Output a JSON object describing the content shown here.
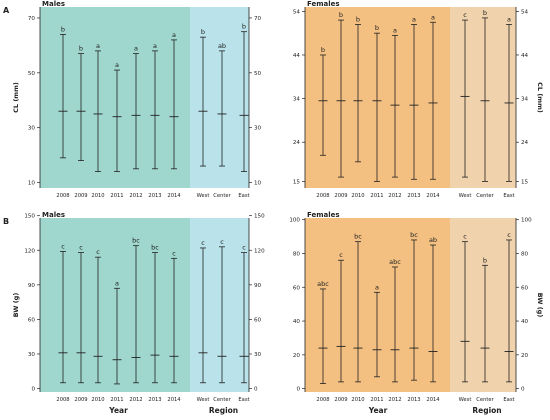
{
  "figure": {
    "panel_labels": [
      "A",
      "B"
    ],
    "x_axis_titles": {
      "year": "Year",
      "region": "Region"
    }
  },
  "colors": {
    "males_year": "#9fd7cf",
    "males_region": "#b9e2ea",
    "females_year": "#f4c082",
    "females_region": "#f0d3ac",
    "line": "#222222"
  },
  "chart_data": [
    {
      "id": "cl-males",
      "type": "error-bar",
      "title": "Males",
      "ylabel": "CL (mm)",
      "ylabel_side": "left",
      "ylim": [
        8,
        74
      ],
      "yticks": [
        10,
        30,
        50,
        70
      ],
      "categories": [
        "2008",
        "2009",
        "2010",
        "2011",
        "2012",
        "2013",
        "2014",
        "West",
        "Center",
        "East"
      ],
      "groups": {
        "year": [
          0,
          6
        ],
        "region": [
          7,
          9
        ]
      },
      "series": [
        {
          "center": [
            36,
            36,
            35,
            34,
            34.5,
            34.5,
            34,
            36,
            35,
            34.5
          ],
          "low": [
            19,
            18,
            14,
            14,
            15,
            15,
            15,
            16,
            16,
            14
          ],
          "high": [
            64,
            57,
            58,
            51,
            57,
            58,
            62,
            63,
            58,
            65
          ]
        }
      ],
      "letters": [
        "b",
        "b",
        "a",
        "a",
        "a",
        "a",
        "a",
        "b",
        "ab",
        "b"
      ]
    },
    {
      "id": "cl-females",
      "type": "error-bar",
      "title": "Females",
      "ylabel": "CL (mm)",
      "ylabel_side": "right",
      "ylim": [
        13.5,
        55
      ],
      "yticks": [
        15,
        24,
        34,
        44,
        54
      ],
      "categories": [
        "2008",
        "2009",
        "2010",
        "2011",
        "2012",
        "2013",
        "2014",
        "West",
        "Center",
        "East"
      ],
      "groups": {
        "year": [
          0,
          6
        ],
        "region": [
          7,
          9
        ]
      },
      "series": [
        {
          "center": [
            33.5,
            33.5,
            33.5,
            33.5,
            32.5,
            32.5,
            33,
            34.5,
            33.5,
            33
          ],
          "low": [
            21,
            16,
            19.5,
            15,
            16,
            15.5,
            15.5,
            16,
            15,
            15
          ],
          "high": [
            44,
            52,
            51,
            49,
            48.5,
            51,
            51.5,
            52,
            52.5,
            51
          ]
        }
      ],
      "letters": [
        "b",
        "b",
        "b",
        "b",
        "a",
        "a",
        "a",
        "c",
        "b",
        "a"
      ]
    },
    {
      "id": "bw-males",
      "type": "error-bar",
      "title": "Males",
      "ylabel": "BW (g)",
      "ylabel_side": "left",
      "ylim": [
        -3,
        148
      ],
      "yticks": [
        0,
        30,
        60,
        90,
        120,
        150
      ],
      "categories": [
        "2008",
        "2009",
        "2010",
        "2011",
        "2012",
        "2013",
        "2014",
        "West",
        "Center",
        "East"
      ],
      "groups": {
        "year": [
          0,
          6
        ],
        "region": [
          7,
          9
        ]
      },
      "series": [
        {
          "center": [
            31,
            31,
            28,
            25,
            27,
            29,
            28,
            31,
            28,
            28
          ],
          "low": [
            5,
            5,
            5,
            4,
            5,
            5,
            5,
            5,
            5,
            5
          ],
          "high": [
            119,
            118,
            114,
            87,
            124,
            118,
            113,
            122,
            123,
            118
          ]
        }
      ],
      "letters": [
        "c",
        "c",
        "c",
        "a",
        "bc",
        "bc",
        "c",
        "c",
        "c",
        "c"
      ]
    },
    {
      "id": "bw-females",
      "type": "error-bar",
      "title": "Females",
      "ylabel": "BW (g)",
      "ylabel_side": "right",
      "ylim": [
        -2,
        101
      ],
      "yticks": [
        0,
        20,
        40,
        60,
        80,
        100
      ],
      "categories": [
        "2008",
        "2009",
        "2010",
        "2011",
        "2012",
        "2013",
        "2014",
        "West",
        "Center",
        "East"
      ],
      "groups": {
        "year": [
          0,
          6
        ],
        "region": [
          7,
          9
        ]
      },
      "series": [
        {
          "center": [
            24,
            25,
            24,
            23,
            23,
            24,
            22,
            28,
            24,
            22
          ],
          "low": [
            3,
            4,
            4,
            7,
            4,
            5,
            4,
            4,
            4,
            4
          ],
          "high": [
            59,
            76,
            87,
            57,
            72,
            88,
            85,
            87,
            73,
            88
          ]
        }
      ],
      "letters": [
        "abc",
        "c",
        "bc",
        "a",
        "abc",
        "bc",
        "ab",
        "c",
        "b",
        "c"
      ]
    }
  ]
}
